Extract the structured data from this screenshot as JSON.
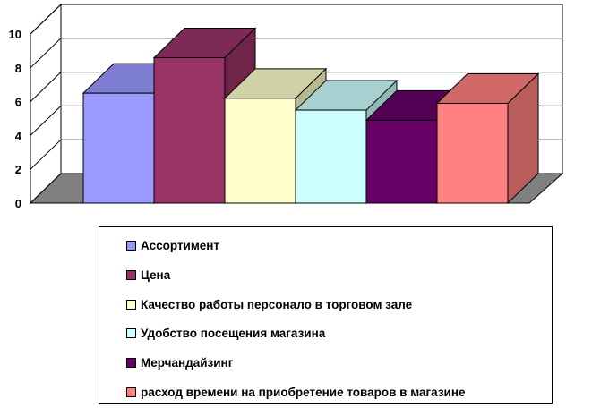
{
  "chart_data": {
    "type": "bar",
    "style": "3d-clustered-column",
    "title": "",
    "xlabel": "",
    "ylabel": "",
    "ylim": [
      0,
      10
    ],
    "yticks": [
      "0",
      "2",
      "4",
      "6",
      "8",
      "10"
    ],
    "grid": true,
    "legend_position": "bottom",
    "series": [
      {
        "name": "Ассортимент",
        "value": 6.5,
        "color": "#9999FF"
      },
      {
        "name": "Цена",
        "value": 8.6,
        "color": "#993366"
      },
      {
        "name": "Качество работы персонало в торговом зале",
        "value": 6.2,
        "color": "#FFFFCC"
      },
      {
        "name": "Удобство посещения  магазина",
        "value": 5.5,
        "color": "#CCFFFF"
      },
      {
        "name": "Мерчандайзинг",
        "value": 4.9,
        "color": "#660066"
      },
      {
        "name": "расход времени на приобретение товаров в магазине",
        "value": 5.9,
        "color": "#FF8080"
      }
    ],
    "floor_color": "#808080"
  }
}
